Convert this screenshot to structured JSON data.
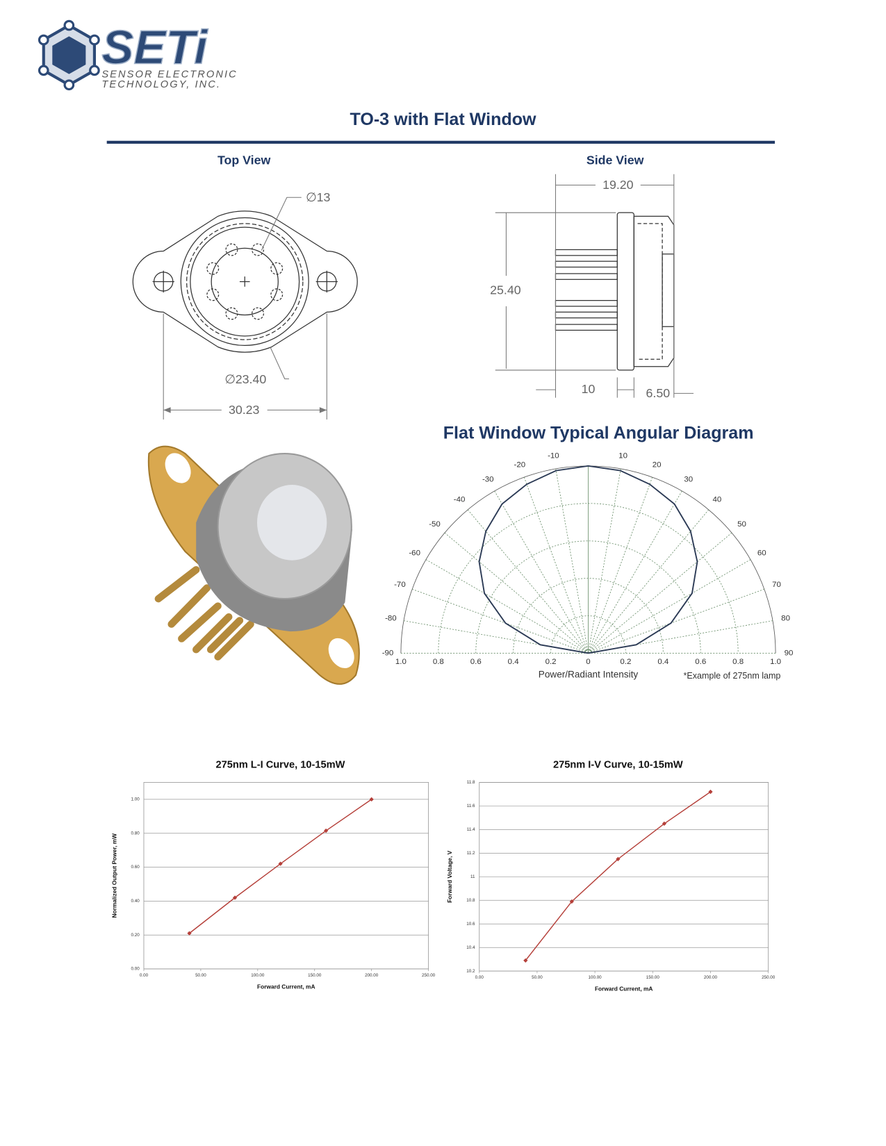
{
  "logo": {
    "name": "SETi",
    "line1": "Sensor Electronic",
    "line2": "Technology, Inc."
  },
  "title": "TO-3 with Flat Window",
  "top_view": {
    "title": "Top View",
    "window_diameter": "∅13",
    "cap_diameter": "∅23.40",
    "hole_spacing": "30.23"
  },
  "side_view": {
    "title": "Side View",
    "depth": "19.20",
    "height": "25.40",
    "pin_length": "10",
    "cap_height": "6.50"
  },
  "angular_diagram": {
    "title": "Flat Window Typical Angular Diagram",
    "angle_ticks": [
      -90,
      -80,
      -70,
      -60,
      -50,
      -40,
      -30,
      -20,
      -10,
      10,
      20,
      30,
      40,
      50,
      60,
      70,
      80,
      90
    ],
    "r_ticks": [
      {
        "value": 1,
        "label": "1.0"
      },
      0.8,
      0.6,
      0.4,
      0.2,
      0
    ],
    "angles": [
      -90,
      -80,
      -70,
      -60,
      -50,
      -40,
      -30,
      -20,
      -10,
      0,
      10,
      20,
      30,
      40,
      50,
      60,
      70,
      80,
      90
    ],
    "values": [
      0,
      0.26,
      0.47,
      0.64,
      0.76,
      0.85,
      0.92,
      0.96,
      0.99,
      1,
      0.99,
      0.96,
      0.92,
      0.85,
      0.76,
      0.64,
      0.47,
      0.26,
      0
    ],
    "color": "#2b3a55",
    "x_label": "Power/Radiant Intensity",
    "note": "*Example of 275nm lamp"
  },
  "li_curve": {
    "title": "275nm L-I Curve, 10-15mW",
    "x_label": "Forward Current, mA",
    "y_label": "Normalized Output Power, mW",
    "xlim": [
      0,
      250
    ],
    "ylim": [
      0,
      1.1
    ],
    "xticks": [
      {
        "value": 0,
        "label": "0.00"
      },
      {
        "value": 50,
        "label": "50.00"
      },
      {
        "value": 100,
        "label": "100.00"
      },
      {
        "value": 150,
        "label": "150.00"
      },
      {
        "value": 200,
        "label": "200.00"
      },
      {
        "value": 250,
        "label": "250.00"
      }
    ],
    "yticks": [
      {
        "value": 0,
        "label": "0.00"
      },
      {
        "value": 0.2,
        "label": "0.20"
      },
      {
        "value": 0.4,
        "label": "0.40"
      },
      {
        "value": 0.6,
        "label": "0.60"
      },
      {
        "value": 0.8,
        "label": "0.80"
      },
      {
        "value": 1,
        "label": "1.00"
      }
    ],
    "x": [
      40,
      80,
      120,
      160,
      200
    ],
    "y": [
      0.21,
      0.42,
      0.62,
      0.815,
      1.0
    ],
    "color": "#b5403a"
  },
  "iv_curve": {
    "title": "275nm I-V Curve, 10-15mW",
    "x_label": "Forward Current, mA",
    "y_label": "Forward Voltage, V",
    "xlim": [
      0,
      250
    ],
    "ylim": [
      10.2,
      11.8
    ],
    "xticks": [
      {
        "value": 0,
        "label": "0.00"
      },
      {
        "value": 50,
        "label": "50.00"
      },
      {
        "value": 100,
        "label": "100.00"
      },
      {
        "value": 150,
        "label": "150.00"
      },
      {
        "value": 200,
        "label": "200.00"
      },
      {
        "value": 250,
        "label": "250.00"
      }
    ],
    "yticks": [
      10.2,
      10.4,
      10.6,
      10.8,
      11,
      11.2,
      11.4,
      11.6,
      11.8
    ],
    "x": [
      40,
      80,
      120,
      160,
      200
    ],
    "y": [
      10.29,
      10.79,
      11.15,
      11.45,
      11.72
    ],
    "color": "#b5403a"
  }
}
